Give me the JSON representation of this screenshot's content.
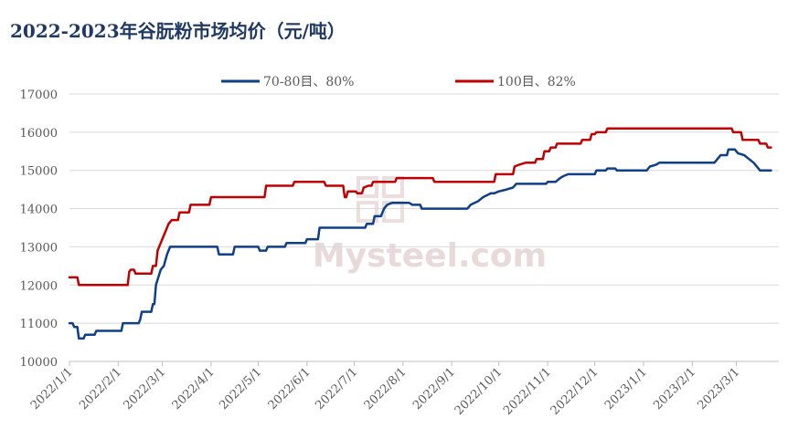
{
  "chart_data": {
    "type": "line",
    "title": "2022-2023年谷朊粉市场均价（元/吨）",
    "ylim": [
      10000,
      17000
    ],
    "yticks": [
      10000,
      11000,
      12000,
      13000,
      14000,
      15000,
      16000,
      17000
    ],
    "xticks": [
      "2022/1/1",
      "2022/2/1",
      "2022/3/1",
      "2022/4/1",
      "2022/5/1",
      "2022/6/1",
      "2022/7/1",
      "2022/8/1",
      "2022/9/1",
      "2022/10/1",
      "2022/11/1",
      "2022/12/1",
      "2023/1/1",
      "2023/2/1",
      "2023/3/1"
    ],
    "xlim": [
      "2022-01-01",
      "2023-03-28"
    ],
    "grid": "horizontal",
    "legend_position": "top",
    "watermark": "Mysteel.com",
    "series": [
      {
        "name": "70-80目、80%",
        "color": "#0e3f88",
        "points": [
          [
            "2022-01-01",
            11000
          ],
          [
            "2022-01-03",
            11000
          ],
          [
            "2022-01-04",
            10900
          ],
          [
            "2022-01-06",
            10900
          ],
          [
            "2022-01-07",
            10600
          ],
          [
            "2022-01-10",
            10600
          ],
          [
            "2022-01-11",
            10700
          ],
          [
            "2022-01-17",
            10700
          ],
          [
            "2022-01-18",
            10800
          ],
          [
            "2022-02-03",
            10800
          ],
          [
            "2022-02-04",
            11000
          ],
          [
            "2022-02-14",
            11000
          ],
          [
            "2022-02-15",
            11100
          ],
          [
            "2022-02-16",
            11300
          ],
          [
            "2022-02-22",
            11300
          ],
          [
            "2022-02-23",
            11500
          ],
          [
            "2022-02-24",
            11500
          ],
          [
            "2022-02-25",
            12000
          ],
          [
            "2022-02-28",
            12400
          ],
          [
            "2022-03-02",
            12500
          ],
          [
            "2022-03-04",
            12800
          ],
          [
            "2022-03-06",
            13000
          ],
          [
            "2022-04-05",
            13000
          ],
          [
            "2022-04-06",
            12800
          ],
          [
            "2022-04-15",
            12800
          ],
          [
            "2022-04-16",
            13000
          ],
          [
            "2022-05-01",
            13000
          ],
          [
            "2022-05-02",
            12900
          ],
          [
            "2022-05-06",
            12900
          ],
          [
            "2022-05-07",
            13000
          ],
          [
            "2022-05-18",
            13000
          ],
          [
            "2022-05-19",
            13100
          ],
          [
            "2022-05-31",
            13100
          ],
          [
            "2022-06-01",
            13200
          ],
          [
            "2022-06-08",
            13200
          ],
          [
            "2022-06-09",
            13500
          ],
          [
            "2022-07-08",
            13500
          ],
          [
            "2022-07-09",
            13600
          ],
          [
            "2022-07-13",
            13600
          ],
          [
            "2022-07-14",
            13800
          ],
          [
            "2022-07-18",
            13800
          ],
          [
            "2022-07-19",
            13900
          ],
          [
            "2022-07-20",
            14000
          ],
          [
            "2022-07-22",
            14100
          ],
          [
            "2022-07-25",
            14150
          ],
          [
            "2022-08-05",
            14150
          ],
          [
            "2022-08-07",
            14100
          ],
          [
            "2022-08-12",
            14100
          ],
          [
            "2022-08-13",
            14000
          ],
          [
            "2022-09-11",
            14000
          ],
          [
            "2022-09-13",
            14100
          ],
          [
            "2022-09-18",
            14200
          ],
          [
            "2022-09-21",
            14300
          ],
          [
            "2022-09-26",
            14400
          ],
          [
            "2022-09-28",
            14400
          ],
          [
            "2022-10-01",
            14450
          ],
          [
            "2022-10-06",
            14500
          ],
          [
            "2022-10-10",
            14550
          ],
          [
            "2022-10-12",
            14650
          ],
          [
            "2022-10-31",
            14650
          ],
          [
            "2022-11-01",
            14700
          ],
          [
            "2022-11-06",
            14700
          ],
          [
            "2022-11-09",
            14800
          ],
          [
            "2022-11-11",
            14850
          ],
          [
            "2022-11-14",
            14900
          ],
          [
            "2022-12-01",
            14900
          ],
          [
            "2022-12-02",
            15000
          ],
          [
            "2022-12-08",
            15000
          ],
          [
            "2022-12-09",
            15050
          ],
          [
            "2022-12-14",
            15050
          ],
          [
            "2022-12-15",
            15000
          ],
          [
            "2023-01-03",
            15000
          ],
          [
            "2023-01-05",
            15100
          ],
          [
            "2023-01-09",
            15150
          ],
          [
            "2023-01-11",
            15200
          ],
          [
            "2023-02-15",
            15200
          ],
          [
            "2023-02-17",
            15300
          ],
          [
            "2023-02-19",
            15400
          ],
          [
            "2023-02-23",
            15400
          ],
          [
            "2023-02-24",
            15550
          ],
          [
            "2023-02-28",
            15550
          ],
          [
            "2023-03-02",
            15450
          ],
          [
            "2023-03-06",
            15400
          ],
          [
            "2023-03-09",
            15300
          ],
          [
            "2023-03-12",
            15200
          ],
          [
            "2023-03-16",
            15000
          ],
          [
            "2023-03-23",
            15000
          ]
        ]
      },
      {
        "name": "100目、82%",
        "color": "#c00000",
        "points": [
          [
            "2022-01-01",
            12200
          ],
          [
            "2022-01-06",
            12200
          ],
          [
            "2022-01-07",
            12000
          ],
          [
            "2022-02-07",
            12000
          ],
          [
            "2022-02-08",
            12350
          ],
          [
            "2022-02-09",
            12400
          ],
          [
            "2022-02-11",
            12400
          ],
          [
            "2022-02-12",
            12300
          ],
          [
            "2022-02-22",
            12300
          ],
          [
            "2022-02-23",
            12500
          ],
          [
            "2022-02-25",
            12500
          ],
          [
            "2022-02-26",
            12900
          ],
          [
            "2022-02-28",
            13100
          ],
          [
            "2022-03-01",
            13200
          ],
          [
            "2022-03-03",
            13400
          ],
          [
            "2022-03-05",
            13600
          ],
          [
            "2022-03-07",
            13700
          ],
          [
            "2022-03-11",
            13700
          ],
          [
            "2022-03-12",
            13900
          ],
          [
            "2022-03-18",
            13900
          ],
          [
            "2022-03-19",
            14100
          ],
          [
            "2022-03-31",
            14100
          ],
          [
            "2022-04-01",
            14300
          ],
          [
            "2022-05-05",
            14300
          ],
          [
            "2022-05-06",
            14600
          ],
          [
            "2022-05-23",
            14600
          ],
          [
            "2022-05-24",
            14700
          ],
          [
            "2022-06-12",
            14700
          ],
          [
            "2022-06-13",
            14600
          ],
          [
            "2022-06-24",
            14600
          ],
          [
            "2022-06-25",
            14300
          ],
          [
            "2022-06-26",
            14300
          ],
          [
            "2022-06-27",
            14450
          ],
          [
            "2022-07-02",
            14450
          ],
          [
            "2022-07-03",
            14400
          ],
          [
            "2022-07-06",
            14400
          ],
          [
            "2022-07-07",
            14550
          ],
          [
            "2022-07-10",
            14600
          ],
          [
            "2022-07-12",
            14600
          ],
          [
            "2022-07-13",
            14700
          ],
          [
            "2022-07-27",
            14700
          ],
          [
            "2022-07-28",
            14800
          ],
          [
            "2022-08-20",
            14800
          ],
          [
            "2022-08-21",
            14700
          ],
          [
            "2022-09-28",
            14700
          ],
          [
            "2022-09-29",
            14900
          ],
          [
            "2022-10-10",
            14900
          ],
          [
            "2022-10-11",
            15100
          ],
          [
            "2022-10-14",
            15150
          ],
          [
            "2022-10-18",
            15200
          ],
          [
            "2022-10-24",
            15200
          ],
          [
            "2022-10-25",
            15300
          ],
          [
            "2022-10-29",
            15300
          ],
          [
            "2022-10-30",
            15500
          ],
          [
            "2022-11-02",
            15500
          ],
          [
            "2022-11-03",
            15600
          ],
          [
            "2022-11-06",
            15600
          ],
          [
            "2022-11-07",
            15700
          ],
          [
            "2022-11-22",
            15700
          ],
          [
            "2022-11-23",
            15800
          ],
          [
            "2022-11-28",
            15800
          ],
          [
            "2022-11-29",
            15950
          ],
          [
            "2022-12-01",
            15950
          ],
          [
            "2022-12-02",
            16000
          ],
          [
            "2022-12-08",
            16000
          ],
          [
            "2022-12-09",
            16100
          ],
          [
            "2023-02-26",
            16100
          ],
          [
            "2023-02-27",
            16000
          ],
          [
            "2023-03-04",
            16000
          ],
          [
            "2023-03-05",
            15800
          ],
          [
            "2023-03-15",
            15800
          ],
          [
            "2023-03-16",
            15700
          ],
          [
            "2023-03-20",
            15700
          ],
          [
            "2023-03-21",
            15600
          ],
          [
            "2023-03-23",
            15600
          ]
        ]
      }
    ]
  }
}
